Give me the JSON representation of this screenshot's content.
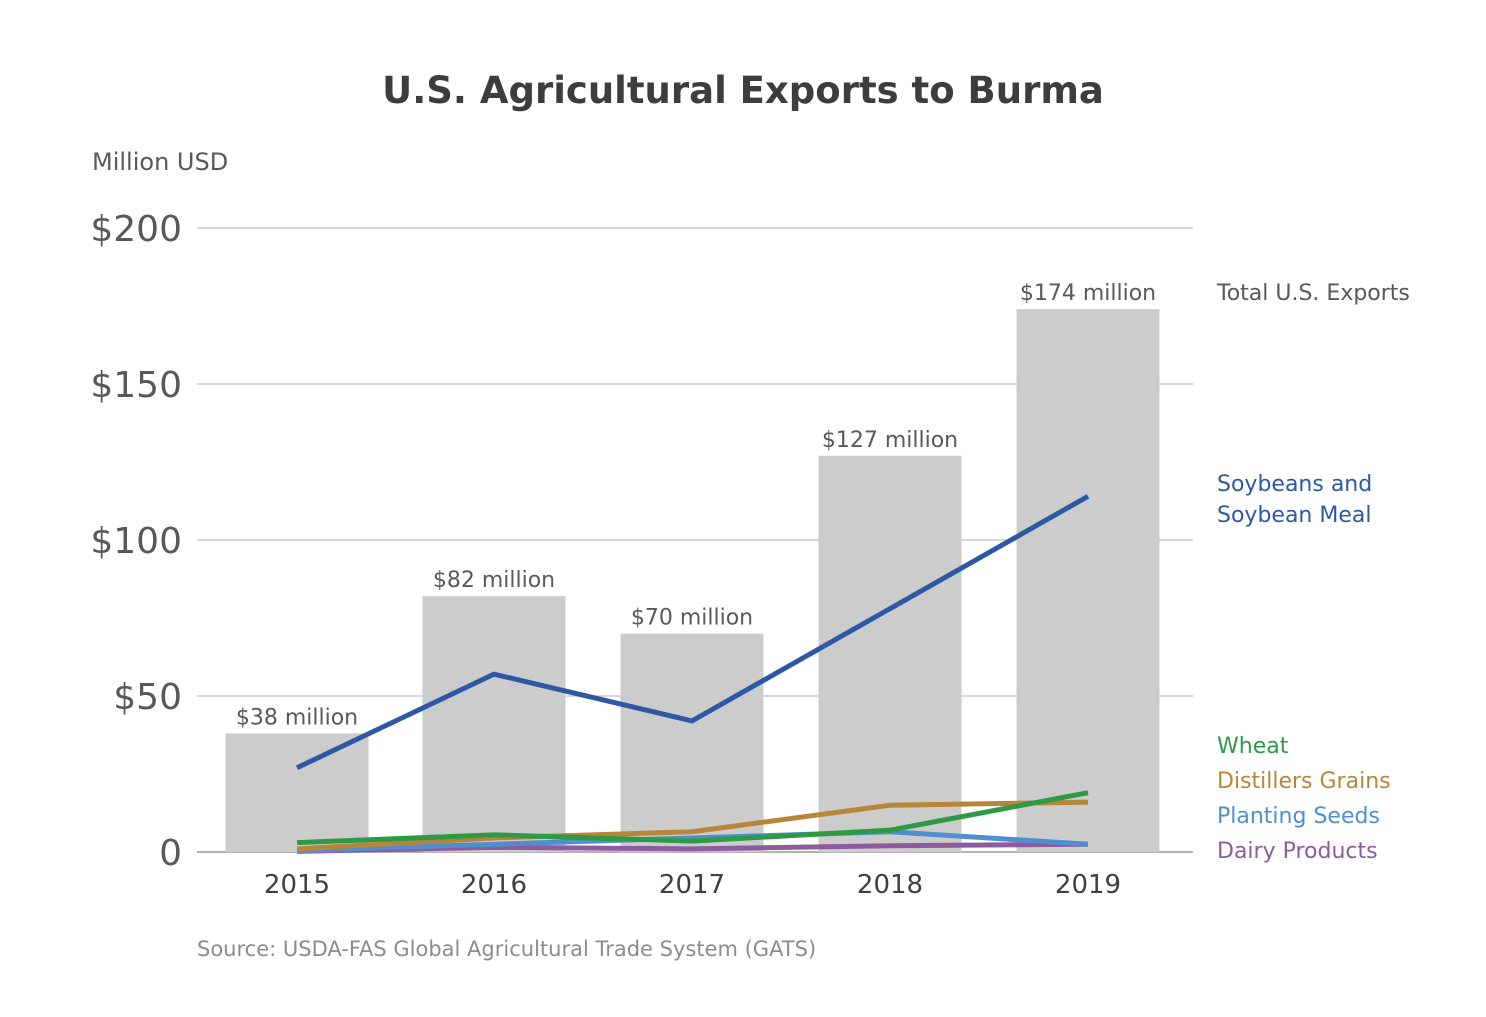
{
  "chart_data": {
    "type": "bar",
    "title": "U.S. Agricultural Exports to Burma",
    "unit_label": "Million USD",
    "source": "Source: USDA-FAS Global Agricultural Trade System (GATS)",
    "categories": [
      "2015",
      "2016",
      "2017",
      "2018",
      "2019"
    ],
    "ylim": [
      0,
      200
    ],
    "yticks": [
      0,
      50,
      100,
      150,
      200
    ],
    "ytick_labels": [
      "0",
      "$50",
      "$100",
      "$150",
      "$200"
    ],
    "grid": true,
    "legend_placement": "right",
    "bars": {
      "name": "Total U.S. Exports",
      "values": [
        38,
        82,
        70,
        127,
        174
      ],
      "data_labels": [
        "$38 million",
        "$82 million",
        "$70 million",
        "$127 million",
        "$174 million"
      ],
      "color": "#cccccc"
    },
    "series": [
      {
        "name": "Soybeans and Soybean Meal",
        "label_lines": [
          "Soybeans and",
          "Soybean Meal"
        ],
        "type": "line",
        "values": [
          27,
          57,
          42,
          78,
          114
        ],
        "color": "#2e58a4"
      },
      {
        "name": "Wheat",
        "label_lines": [
          "Wheat"
        ],
        "type": "line",
        "values": [
          3,
          5.5,
          3.5,
          7,
          19
        ],
        "color": "#2f9a46"
      },
      {
        "name": "Distillers Grains",
        "label_lines": [
          "Distillers Grains"
        ],
        "type": "line",
        "values": [
          1,
          4.5,
          6.5,
          15,
          16
        ],
        "color": "#b8863b"
      },
      {
        "name": "Planting Seeds",
        "label_lines": [
          "Planting Seeds"
        ],
        "type": "line",
        "values": [
          0.5,
          2.5,
          4.5,
          6.5,
          2.5
        ],
        "color": "#4f8fd0"
      },
      {
        "name": "Dairy Products",
        "label_lines": [
          "Dairy Products"
        ],
        "type": "line",
        "values": [
          0.2,
          1.5,
          1,
          2,
          2.5
        ],
        "color": "#8f5b9e"
      }
    ],
    "legend_label_color_total": "#595959"
  }
}
